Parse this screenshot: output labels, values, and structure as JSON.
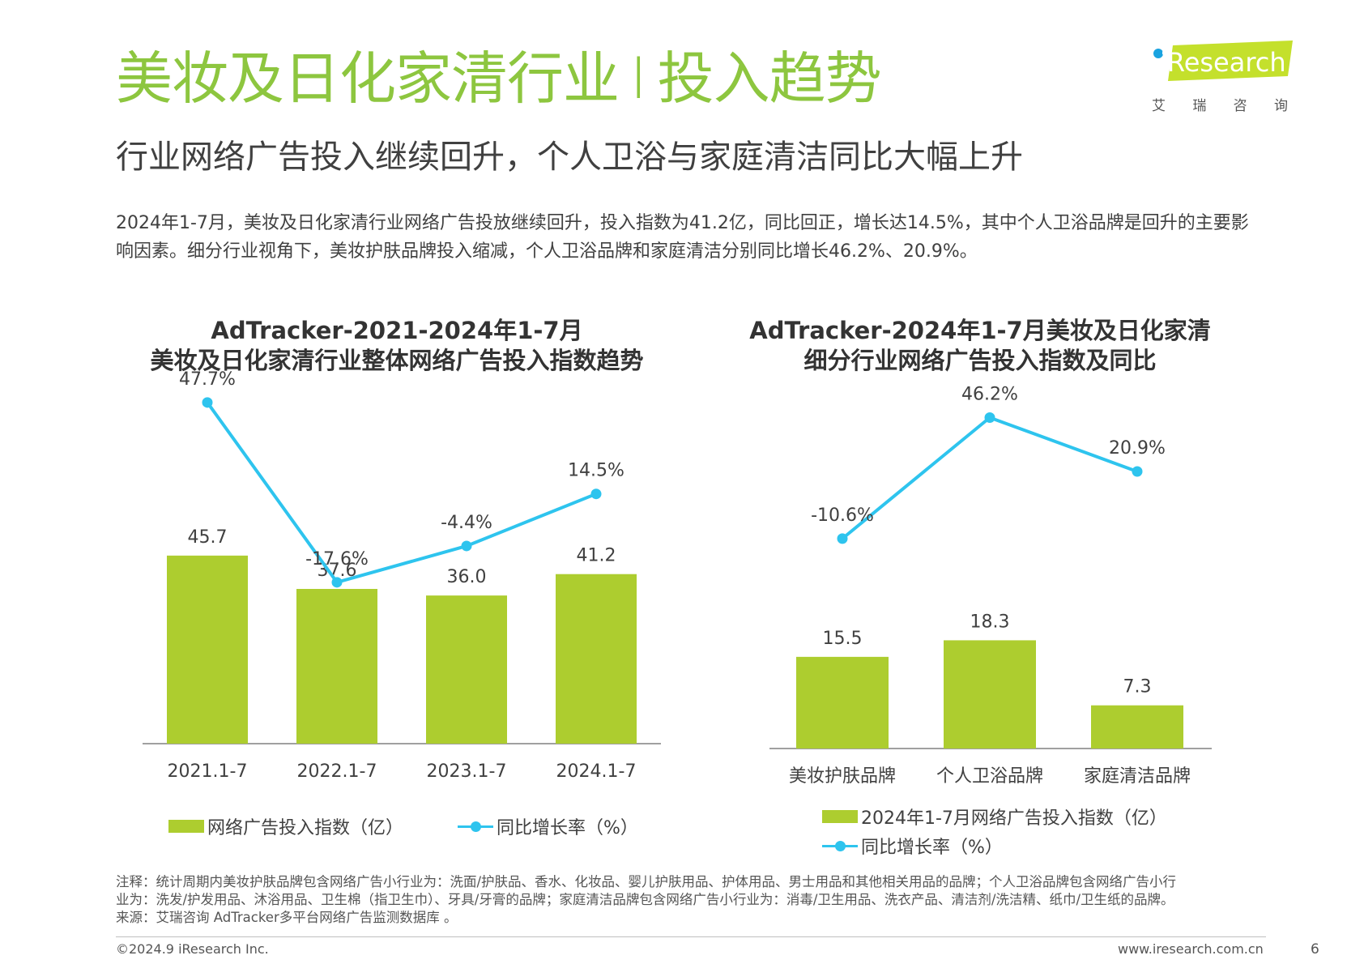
{
  "header": {
    "title_left": "美妆及日化家清行业",
    "title_sep": "I",
    "title_right": "投入趋势",
    "subtitle": "行业网络广告投入继续回升，个人卫浴与家庭清洁同比大幅上升",
    "summary": "2024年1-7月，美妆及日化家清行业网络广告投放继续回升，投入指数为41.2亿，同比回正，增长达14.5%，其中个人卫浴品牌是回升的主要影响因素。细分行业视角下，美妆护肤品牌投入缩减，个人卫浴品牌和家庭清洁分别同比增长46.2%、20.9%。"
  },
  "logo": {
    "text": "iResearch",
    "cn_chars": [
      "艾",
      "瑞",
      "咨",
      "询"
    ],
    "colors": {
      "green": "#c4e02c",
      "blue": "#1aa3e0"
    }
  },
  "colors": {
    "title_green": "#8dc63f",
    "bar": "#adcd2f",
    "line": "#2ec4ee"
  },
  "chart_data": [
    {
      "type": "bar",
      "title_line1": "AdTracker-2021-2024年1-7月",
      "title_line2": "美妆及日化家清行业整体网络广告投入指数趋势",
      "categories": [
        "2021.1-7",
        "2022.1-7",
        "2023.1-7",
        "2024.1-7"
      ],
      "series": [
        {
          "name": "网络广告投入指数（亿）",
          "kind": "bar",
          "values": [
            45.7,
            37.6,
            36.0,
            41.2
          ],
          "labels": [
            "45.7",
            "37.6",
            "36.0",
            "41.2"
          ]
        },
        {
          "name": "同比增长率（%）",
          "kind": "line",
          "values": [
            47.7,
            -17.6,
            -4.4,
            14.5
          ],
          "labels": [
            "47.7%",
            "-17.6%",
            "-4.4%",
            "14.5%"
          ]
        }
      ],
      "legend_position": "bottom",
      "grid": false
    },
    {
      "type": "bar",
      "title_line1": "AdTracker-2024年1-7月美妆及日化家清",
      "title_line2": "细分行业网络广告投入指数及同比",
      "categories": [
        "美妆护肤品牌",
        "个人卫浴品牌",
        "家庭清洁品牌"
      ],
      "series": [
        {
          "name": "2024年1-7月网络广告投入指数（亿）",
          "kind": "bar",
          "values": [
            15.5,
            18.3,
            7.3
          ],
          "labels": [
            "15.5",
            "18.3",
            "7.3"
          ]
        },
        {
          "name": "同比增长率（%）",
          "kind": "line",
          "values": [
            -10.6,
            46.2,
            20.9
          ],
          "labels": [
            "-10.6%",
            "46.2%",
            "20.9%"
          ]
        }
      ],
      "legend_position": "bottom",
      "grid": false
    }
  ],
  "footer": {
    "note_line1": "注释：统计周期内美妆护肤品牌包含网络广告小行业为：洗面/护肤品、香水、化妆品、婴儿护肤用品、护体用品、男士用品和其他相关用品的品牌；个人卫浴品牌包含网络广告小行",
    "note_line2": "业为：洗发/护发用品、沐浴用品、卫生棉（指卫生巾）、牙具/牙膏的品牌；家庭清洁品牌包含网络广告小行业为：消毒/卫生用品、洗衣产品、清洁剂/洗洁精、纸巾/卫生纸的品牌。",
    "note_line3": "来源：艾瑞咨询 AdTracker多平台网络广告监测数据库 。",
    "copyright": "©2024.9 iResearch Inc.",
    "website": "www.iresearch.com.cn",
    "page_number": "6"
  }
}
